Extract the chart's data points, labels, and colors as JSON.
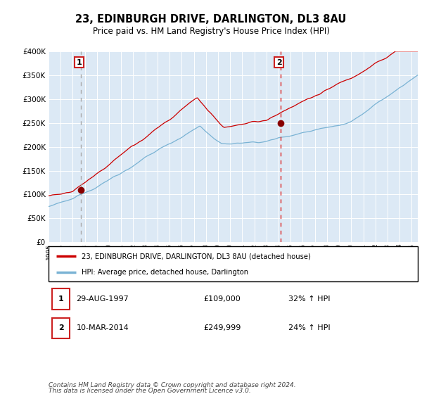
{
  "title": "23, EDINBURGH DRIVE, DARLINGTON, DL3 8AU",
  "subtitle": "Price paid vs. HM Land Registry's House Price Index (HPI)",
  "bg_color": "#dce9f5",
  "red_line_color": "#cc0000",
  "blue_line_color": "#7ab3d4",
  "marker_color": "#880000",
  "ylim": [
    0,
    400000
  ],
  "yticks": [
    0,
    50000,
    100000,
    150000,
    200000,
    250000,
    300000,
    350000,
    400000
  ],
  "sale1_year": 1997.66,
  "sale1_price": 109000,
  "sale2_year": 2014.19,
  "sale2_price": 249999,
  "legend_red_label": "23, EDINBURGH DRIVE, DARLINGTON, DL3 8AU (detached house)",
  "legend_blue_label": "HPI: Average price, detached house, Darlington",
  "table_row1_num": "1",
  "table_row1_date": "29-AUG-1997",
  "table_row1_price": "£109,000",
  "table_row1_hpi": "32% ↑ HPI",
  "table_row2_num": "2",
  "table_row2_date": "10-MAR-2014",
  "table_row2_price": "£249,999",
  "table_row2_hpi": "24% ↑ HPI",
  "footer_line1": "Contains HM Land Registry data © Crown copyright and database right 2024.",
  "footer_line2": "This data is licensed under the Open Government Licence v3.0.",
  "xmin": 1995.0,
  "xmax": 2025.5
}
